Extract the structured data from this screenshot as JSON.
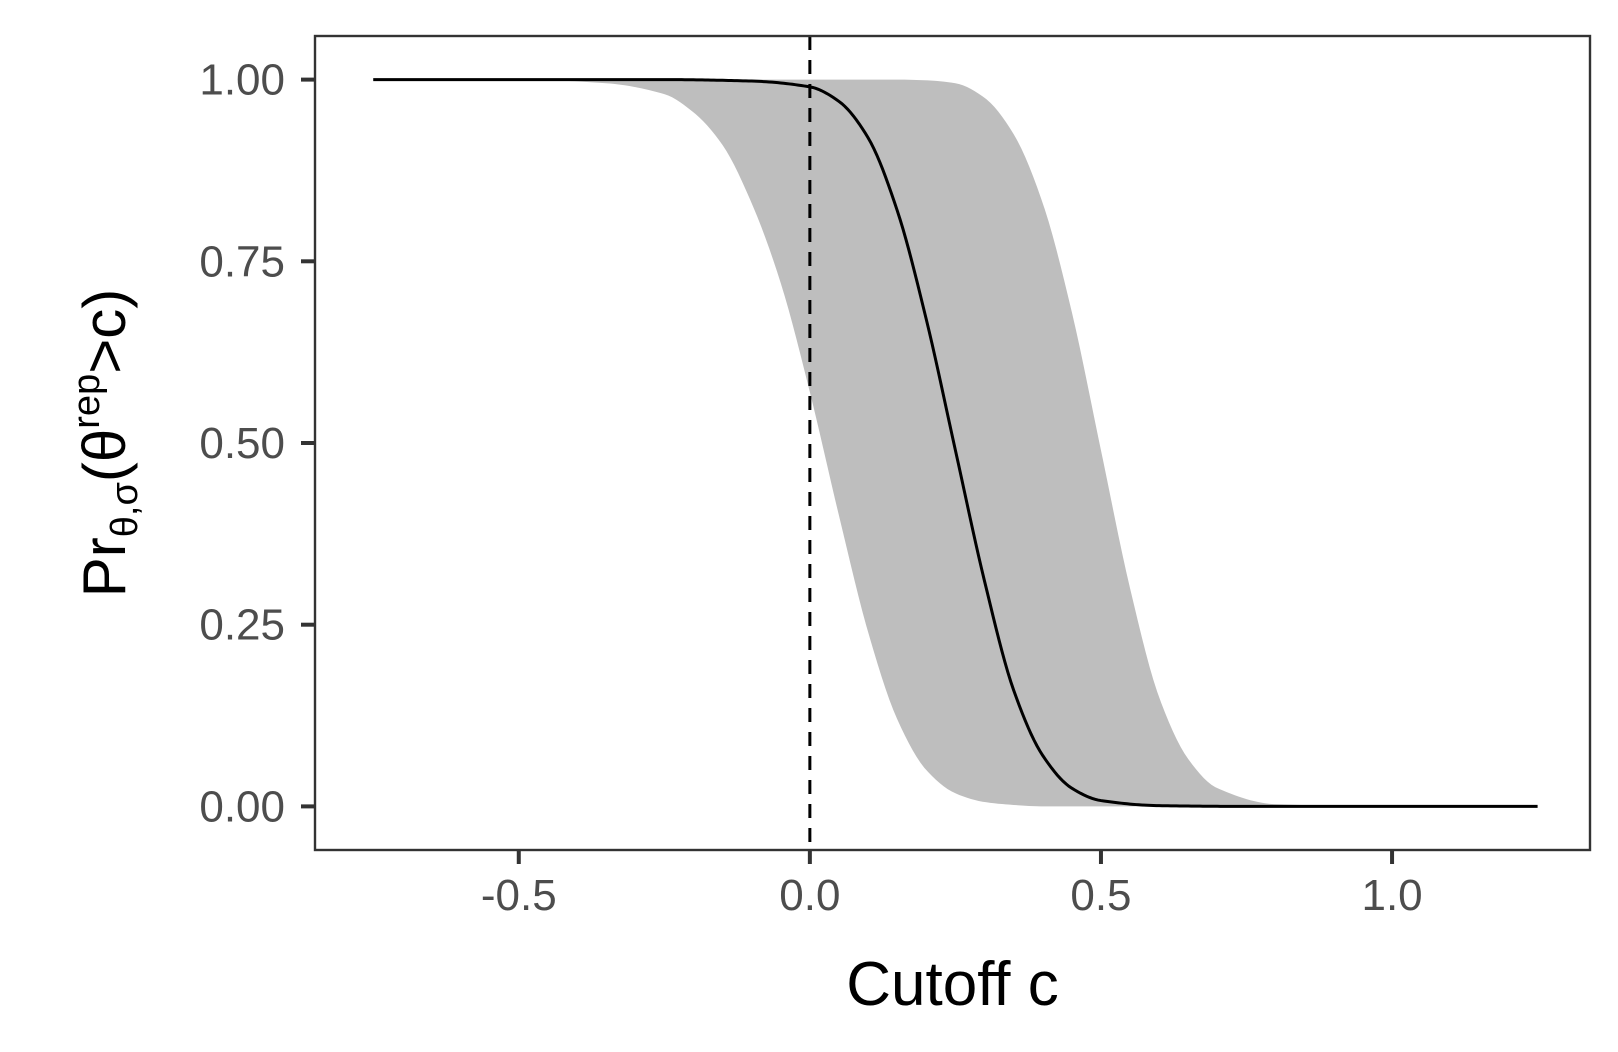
{
  "chart_data": {
    "type": "area",
    "title": "",
    "xlabel": "Cutoff c",
    "ylabel": {
      "prefix": "Pr",
      "subscript": "θ,σ",
      "argument": "(θ",
      "superscript": "rep",
      "suffix": ">c)"
    },
    "xlim": [
      -0.85,
      1.34
    ],
    "ylim": [
      -0.06,
      1.06
    ],
    "x_ticks": [
      {
        "value": -0.5,
        "label": "-0.5"
      },
      {
        "value": 0.0,
        "label": "0.0"
      },
      {
        "value": 0.5,
        "label": "0.5"
      },
      {
        "value": 1.0,
        "label": "1.0"
      }
    ],
    "y_ticks": [
      {
        "value": 0.0,
        "label": "0.00"
      },
      {
        "value": 0.25,
        "label": "0.25"
      },
      {
        "value": 0.5,
        "label": "0.50"
      },
      {
        "value": 0.75,
        "label": "0.75"
      },
      {
        "value": 1.0,
        "label": "1.00"
      }
    ],
    "grid": false,
    "series": [
      {
        "type": "line",
        "color": "#000000",
        "x": [
          -0.75,
          -0.5,
          -0.25,
          -0.1,
          0.0,
          0.05,
          0.1,
          0.15,
          0.2,
          0.25,
          0.3,
          0.35,
          0.4,
          0.45,
          0.5,
          0.6,
          0.75,
          1.0,
          1.25
        ],
        "y": [
          1.0,
          1.0,
          1.0,
          0.998,
          0.99,
          0.97,
          0.92,
          0.82,
          0.67,
          0.49,
          0.31,
          0.16,
          0.07,
          0.025,
          0.008,
          0.001,
          0.0,
          0.0,
          0.0
        ]
      },
      {
        "type": "band",
        "color": "#bebebe",
        "x": [
          -0.75,
          -0.5,
          -0.35,
          -0.25,
          -0.2,
          -0.15,
          -0.1,
          -0.05,
          0.0,
          0.05,
          0.1,
          0.15,
          0.2,
          0.25,
          0.3,
          0.35,
          0.4,
          0.45,
          0.5,
          0.55,
          0.6,
          0.65,
          0.7,
          0.8,
          1.0,
          1.25
        ],
        "ymin": [
          1.0,
          1.0,
          0.995,
          0.98,
          0.955,
          0.91,
          0.83,
          0.72,
          0.57,
          0.4,
          0.24,
          0.12,
          0.05,
          0.018,
          0.006,
          0.002,
          0.0,
          0.0,
          0.0,
          0.0,
          0.0,
          0.0,
          0.0,
          0.0,
          0.0,
          0.0
        ],
        "ymax": [
          1.0,
          1.0,
          1.0,
          1.0,
          1.0,
          1.0,
          1.0,
          1.0,
          1.0,
          1.0,
          1.0,
          1.0,
          0.999,
          0.995,
          0.975,
          0.925,
          0.83,
          0.68,
          0.49,
          0.3,
          0.15,
          0.065,
          0.025,
          0.003,
          0.0,
          0.0
        ]
      }
    ],
    "reference_lines": [
      {
        "orientation": "vertical",
        "x": 0.0,
        "style": "dashed",
        "color": "#000000"
      }
    ]
  }
}
